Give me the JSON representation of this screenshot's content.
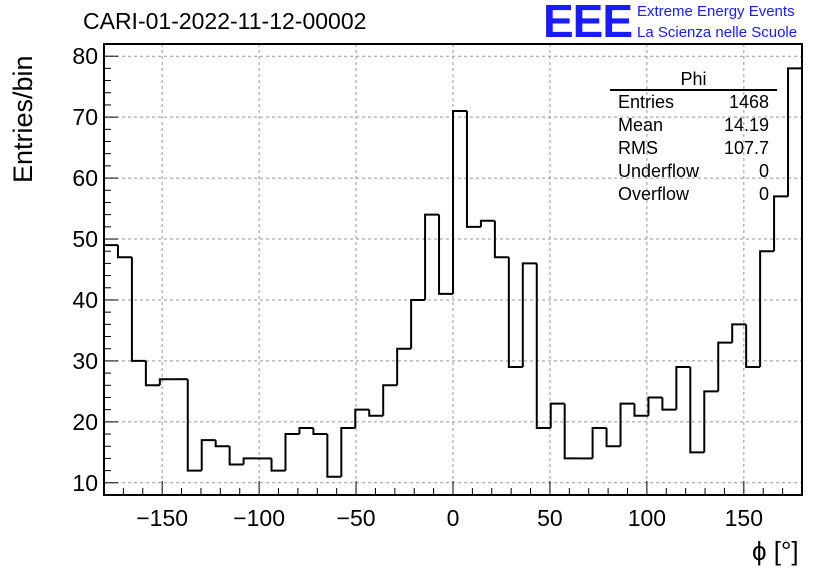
{
  "header": {
    "title": "CARI-01-2022-11-12-00002",
    "logo": "EEE",
    "logo_line1": "Extreme Energy Events",
    "logo_line2": "La Scienza nelle Scuole",
    "brand_color": "#1a1aff"
  },
  "stats_box": {
    "name": "Phi",
    "rows": [
      {
        "label": "Entries",
        "value": "1468"
      },
      {
        "label": "Mean",
        "value": "14.19"
      },
      {
        "label": "RMS",
        "value": "107.7"
      },
      {
        "label": "Underflow",
        "value": "0"
      },
      {
        "label": "Overflow",
        "value": "0"
      }
    ]
  },
  "chart_data": {
    "type": "histogram",
    "title": "CARI-01-2022-11-12-00002",
    "xlabel": "ϕ [°]",
    "ylabel": "Entries/bin",
    "xlim": [
      -180,
      180
    ],
    "ylim": [
      8,
      82
    ],
    "bin_width": 7.2,
    "bin_edges_start": -180,
    "values": [
      49,
      47,
      30,
      26,
      27,
      27,
      12,
      17,
      16,
      13,
      14,
      14,
      12,
      18,
      19,
      18,
      11,
      19,
      22,
      21,
      26,
      32,
      40,
      54,
      41,
      71,
      52,
      53,
      47,
      29,
      46,
      19,
      23,
      14,
      14,
      19,
      16,
      23,
      21,
      24,
      22,
      29,
      15,
      25,
      33,
      36,
      29,
      48,
      57,
      78
    ],
    "xticks": [
      -150,
      -100,
      -50,
      0,
      50,
      100,
      150
    ],
    "xtick_labels": [
      "−150",
      "−100",
      "−50",
      "0",
      "50",
      "100",
      "150"
    ],
    "yticks": [
      10,
      20,
      30,
      40,
      50,
      60,
      70,
      80
    ],
    "ytick_labels": [
      "10",
      "20",
      "30",
      "40",
      "50",
      "60",
      "70",
      "80"
    ],
    "grid": true
  }
}
